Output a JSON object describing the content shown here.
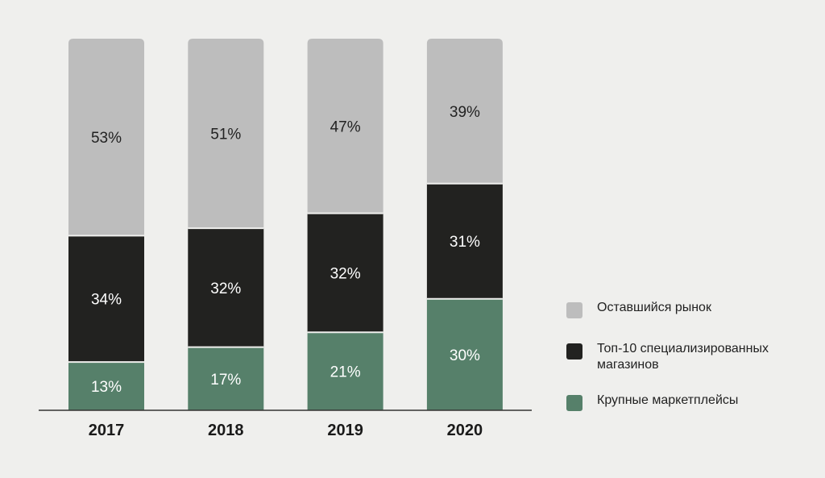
{
  "chart_data": {
    "type": "bar",
    "stacked": true,
    "categories": [
      "2017",
      "2018",
      "2019",
      "2020"
    ],
    "series": [
      {
        "name": "Крупные маркетплейсы",
        "values": [
          13,
          17,
          21,
          30
        ],
        "color": "#56806a",
        "label_color": "#ffffff"
      },
      {
        "name": "Топ-10 специализированных магазинов",
        "values": [
          34,
          32,
          32,
          31
        ],
        "color": "#222220",
        "label_color": "#ffffff"
      },
      {
        "name": "Оставшийся рынок",
        "values": [
          53,
          51,
          47,
          39
        ],
        "color": "#bdbdbd",
        "label_color": "#222222"
      }
    ],
    "value_suffix": "%",
    "ylim": [
      0,
      100
    ],
    "legend_position": "right",
    "grid": false
  },
  "legend": {
    "items": [
      {
        "label": "Оставшийся рынок",
        "color": "#bdbdbd"
      },
      {
        "label": "Топ-10 специализированных магазинов",
        "color": "#222220"
      },
      {
        "label": "Крупные маркетплейсы",
        "color": "#56806a"
      }
    ]
  }
}
